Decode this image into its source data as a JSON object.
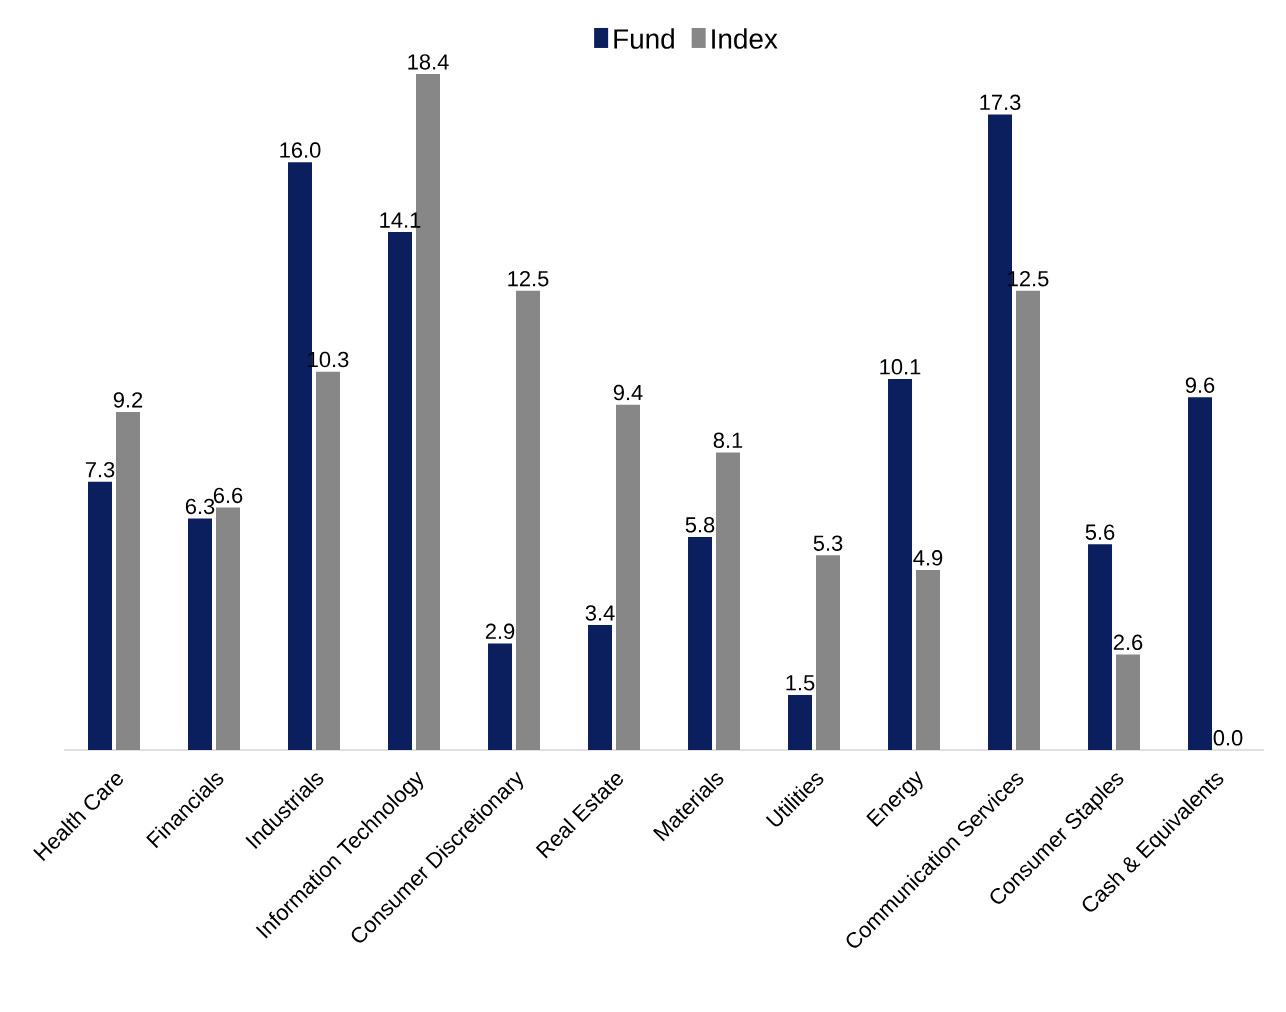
{
  "chart_data": {
    "type": "bar",
    "categories": [
      "Health Care",
      "Financials",
      "Industrials",
      "Information Technology",
      "Consumer Discretionary",
      "Real Estate",
      "Materials",
      "Utilities",
      "Energy",
      "Communication Services",
      "Consumer Staples",
      "Cash & Equivalents"
    ],
    "series": [
      {
        "name": "Fund",
        "color": "#0b1f5e",
        "values": [
          7.3,
          6.3,
          16.0,
          14.1,
          2.9,
          3.4,
          5.8,
          1.5,
          10.1,
          17.3,
          5.6,
          9.6
        ],
        "value_labels": [
          "7.3",
          "6.3",
          "16.0",
          "14.1",
          "2.9",
          "3.4",
          "5.8",
          "1.5",
          "10.1",
          "17.3",
          "5.6",
          "9.6"
        ]
      },
      {
        "name": "Index",
        "color": "#878787",
        "values": [
          9.2,
          6.6,
          10.3,
          18.4,
          12.5,
          9.4,
          8.1,
          5.3,
          4.9,
          12.5,
          2.6,
          0.0
        ],
        "value_labels": [
          "9.2",
          "6.6",
          "10.3",
          "18.4",
          "12.5",
          "9.4",
          "8.1",
          "5.3",
          "4.9",
          "12.5",
          "2.6",
          "0.0"
        ]
      }
    ],
    "legend": "top"
  }
}
